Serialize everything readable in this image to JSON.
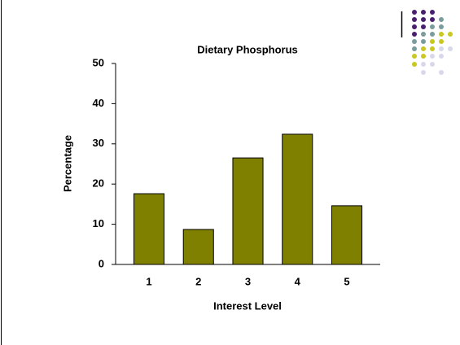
{
  "chart_data": {
    "type": "bar",
    "title": "Dietary Phosphorus",
    "x_label": "Interest Level",
    "y_label": "Percentage",
    "categories": [
      "1",
      "2",
      "3",
      "4",
      "5"
    ],
    "values": [
      17.6,
      8.7,
      26.5,
      32.4,
      14.6
    ],
    "color": "#808000",
    "ylim": [
      0,
      50
    ],
    "yticks": [
      0,
      10,
      20,
      30,
      40,
      50
    ],
    "grid": false
  }
}
